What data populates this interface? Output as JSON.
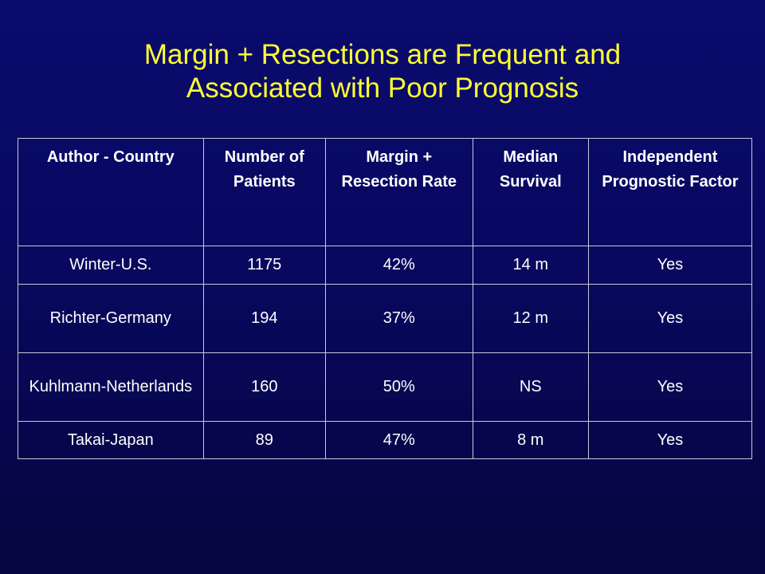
{
  "title": {
    "line1": "Margin + Resections are Frequent and",
    "line2": "Associated with Poor Prognosis"
  },
  "table": {
    "headers": [
      "Author - Country",
      "Number of Patients",
      "Margin + Resection Rate",
      "Median Survival",
      "Independent Prognostic Factor"
    ],
    "rows": [
      [
        "Winter-U.S.",
        "1175",
        "42%",
        "14 m",
        "Yes"
      ],
      [
        "Richter-Germany",
        "194",
        "37%",
        "12 m",
        "Yes"
      ],
      [
        "Kuhlmann-Netherlands",
        "160",
        "50%",
        "NS",
        "Yes"
      ],
      [
        "Takai-Japan",
        "89",
        "47%",
        "8 m",
        "Yes"
      ]
    ]
  },
  "colors": {
    "background": "#0a0a6a",
    "title": "#ffff33",
    "text": "#ffffff",
    "border": "#c8c8d8"
  }
}
